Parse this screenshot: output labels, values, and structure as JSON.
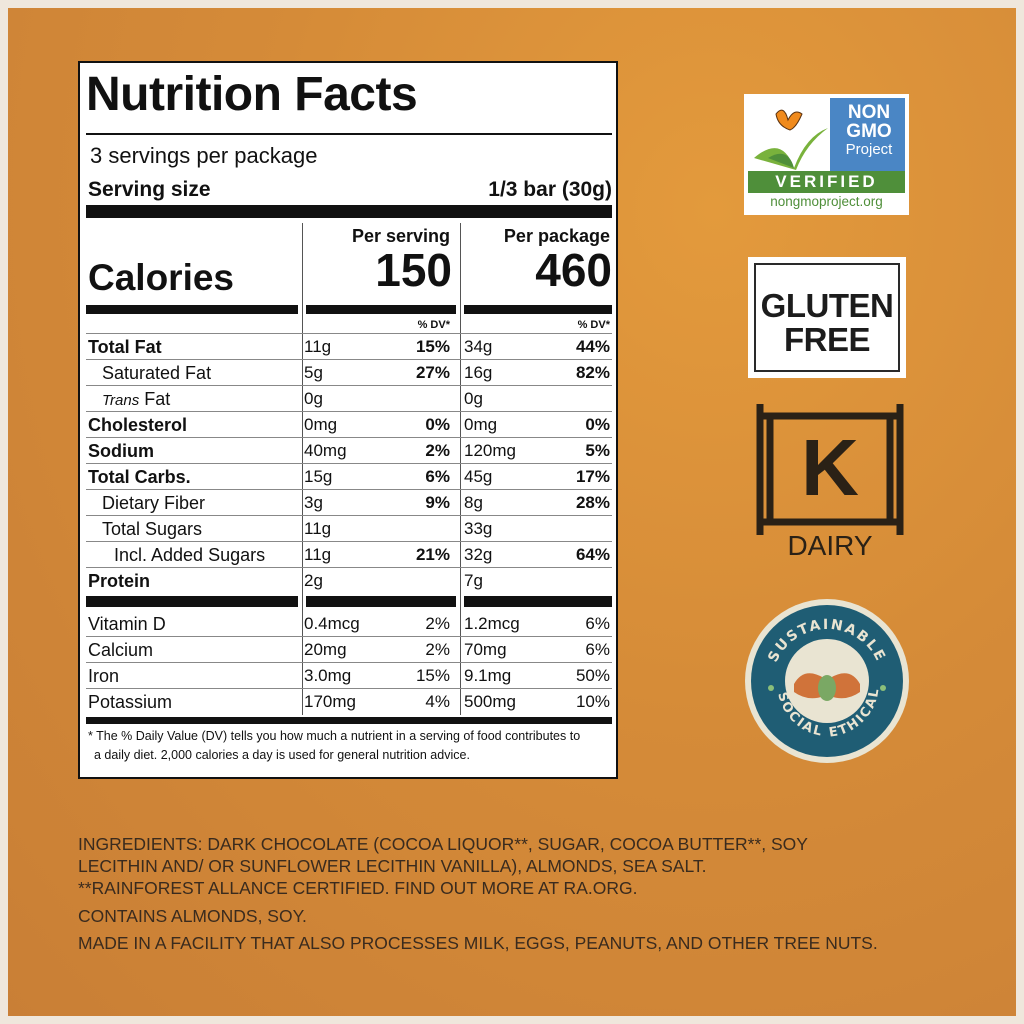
{
  "nutrition": {
    "title": "Nutrition Facts",
    "servings": "3 servings per package",
    "serving_size_label": "Serving size",
    "serving_size_value": "1/3 bar (30g)",
    "col1_header": "Per serving",
    "col2_header": "Per package",
    "calories_label": "Calories",
    "calories_serving": "150",
    "calories_package": "460",
    "dv_header": "% DV*",
    "rows": [
      {
        "name": "Total Fat",
        "a1": "11g",
        "p1": "15%",
        "a2": "34g",
        "p2": "44%"
      },
      {
        "name": "Saturated Fat",
        "a1": "5g",
        "p1": "27%",
        "a2": "16g",
        "p2": "82%"
      },
      {
        "name_italic": "Trans",
        "name_rest": " Fat",
        "a1": "0g",
        "p1": "",
        "a2": "0g",
        "p2": ""
      },
      {
        "name": "Cholesterol",
        "a1": "0mg",
        "p1": "0%",
        "a2": "0mg",
        "p2": "0%"
      },
      {
        "name": "Sodium",
        "a1": "40mg",
        "p1": "2%",
        "a2": "120mg",
        "p2": "5%"
      },
      {
        "name": "Total Carbs.",
        "a1": "15g",
        "p1": "6%",
        "a2": "45g",
        "p2": "17%"
      },
      {
        "name": "Dietary Fiber",
        "a1": "3g",
        "p1": "9%",
        "a2": "8g",
        "p2": "28%"
      },
      {
        "name": "Total Sugars",
        "a1": "11g",
        "p1": "",
        "a2": "33g",
        "p2": ""
      },
      {
        "name": "Incl. Added Sugars",
        "a1": "11g",
        "p1": "21%",
        "a2": "32g",
        "p2": "64%"
      },
      {
        "name": "Protein",
        "a1": "2g",
        "p1": "",
        "a2": "7g",
        "p2": ""
      }
    ],
    "vitamins": [
      {
        "name": "Vitamin D",
        "a1": "0.4mcg",
        "p1": "2%",
        "a2": "1.2mcg",
        "p2": "6%"
      },
      {
        "name": "Calcium",
        "a1": "20mg",
        "p1": "2%",
        "a2": "70mg",
        "p2": "6%"
      },
      {
        "name": "Iron",
        "a1": "3.0mg",
        "p1": "15%",
        "a2": "9.1mg",
        "p2": "50%"
      },
      {
        "name": "Potassium",
        "a1": "170mg",
        "p1": "4%",
        "a2": "500mg",
        "p2": "10%"
      }
    ],
    "footnote_1": "* The % Daily Value (DV) tells you how much a nutrient in a serving of food contributes to",
    "footnote_2": "a daily diet. 2,000 calories a day is used for general nutrition advice."
  },
  "ingredients": {
    "line1": "INGREDIENTS: DARK CHOCOLATE (COCOA LIQUOR**, SUGAR, COCOA BUTTER**, SOY",
    "line2": "LECITHIN AND/ OR SUNFLOWER LECITHIN VANILLA), ALMONDS, SEA SALT.",
    "line3": "**RAINFOREST ALLANCE CERTIFIED. FIND OUT MORE AT RA.ORG.",
    "contains": "CONTAINS ALMONDS, SOY.",
    "facility": "MADE IN A FACILITY THAT ALSO PROCESSES MILK, EGGS, PEANUTS, AND OTHER TREE NUTS."
  },
  "badges": {
    "non_gmo": {
      "line1": "NON",
      "line2": "GMO",
      "line3": "Project",
      "verified": "VERIFIED",
      "url": "nongmoproject.org"
    },
    "gluten_free": {
      "line1": "GLUTEN",
      "line2": "FREE"
    },
    "kosher": {
      "letter": "K",
      "label": "DAIRY"
    },
    "sustainable": {
      "top": "SUSTAINABLE",
      "left": "SOCIAL",
      "right": "ETHICAL"
    }
  },
  "colors": {
    "background": "#d58b38",
    "gmo_blue": "#4a86c5",
    "gmo_green": "#4f8f3a",
    "seal_blue": "#1f5d74",
    "seal_orange": "#d0733a"
  }
}
